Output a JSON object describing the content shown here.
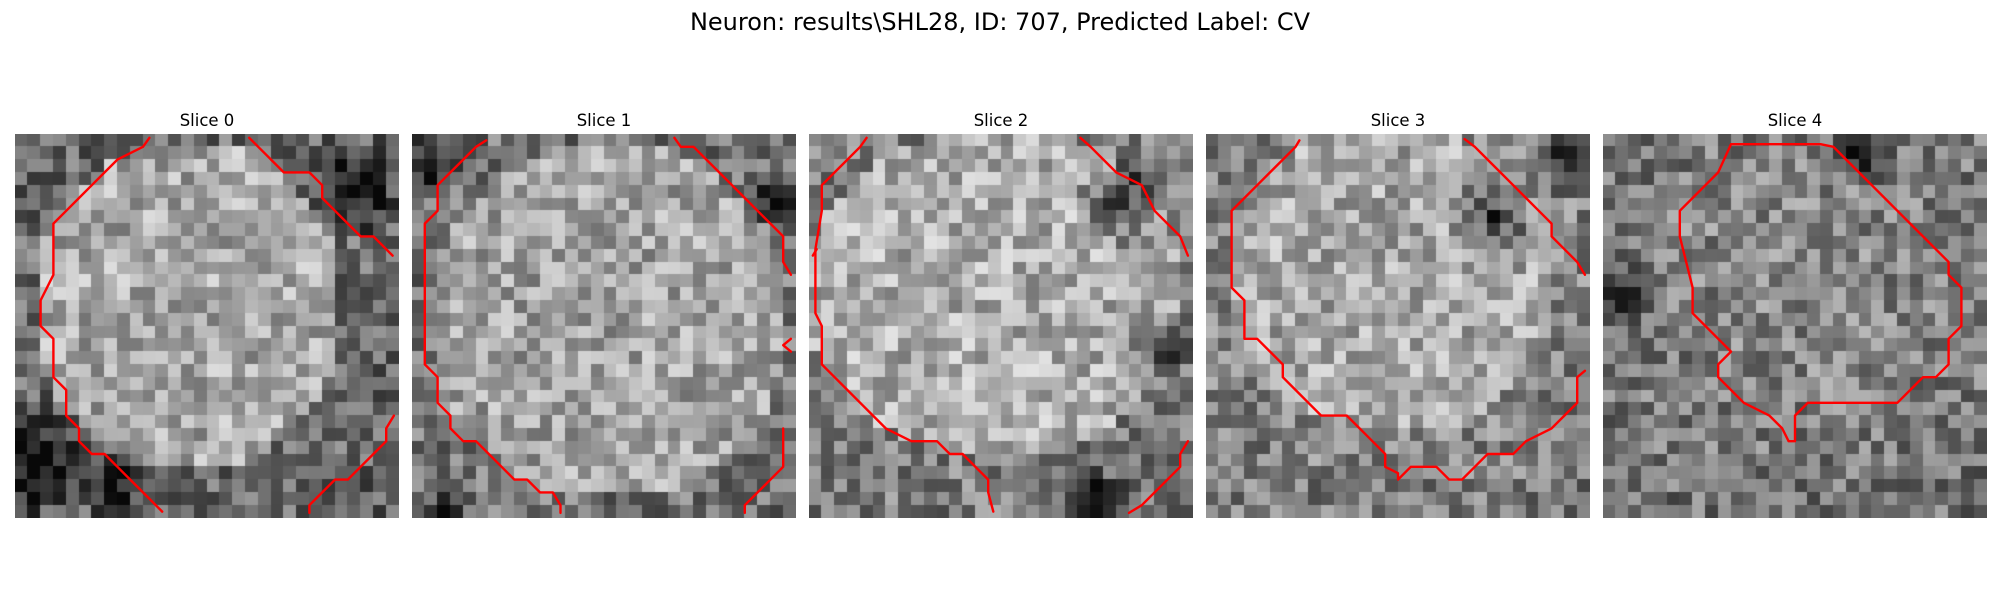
{
  "figure": {
    "title": "Neuron: results\\SHL28, ID: 707, Predicted Label: CV"
  },
  "colors": {
    "contour": "#ff0000",
    "background": "#ffffff"
  },
  "slices": [
    {
      "title": "Slice 0"
    },
    {
      "title": "Slice 1"
    },
    {
      "title": "Slice 2"
    },
    {
      "title": "Slice 3"
    },
    {
      "title": "Slice 4"
    }
  ]
}
